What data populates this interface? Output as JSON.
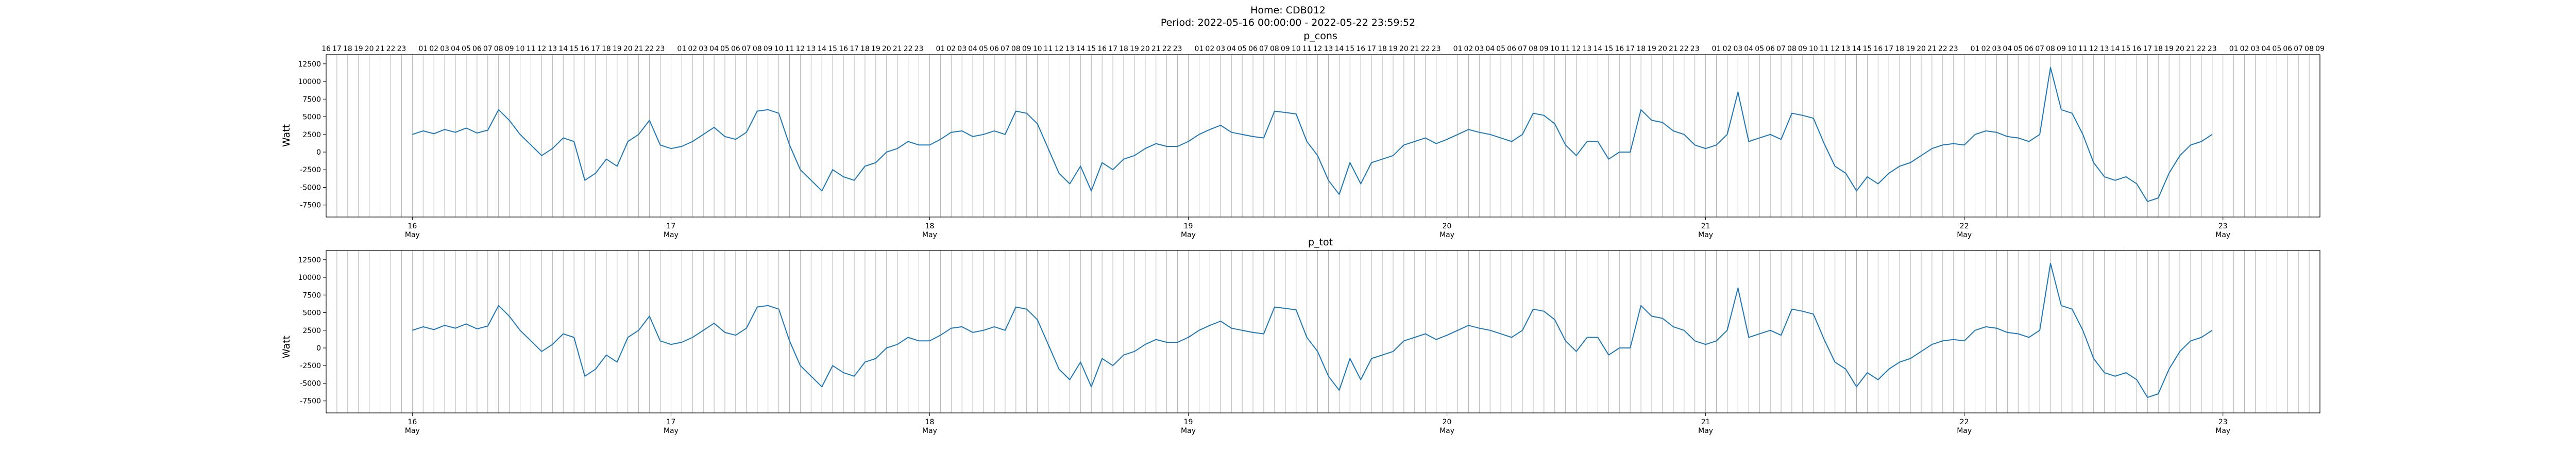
{
  "figure": {
    "title_line1": "Home: CDB012",
    "title_line2": "Period: 2022-05-16 00:00:00 - 2022-05-22 23:59:52"
  },
  "colors": {
    "series": "#1f77b4",
    "vgrid": "#b0b0b0",
    "axes": "#000000"
  },
  "chart_data": [
    {
      "type": "line",
      "title": "p_cons",
      "ylabel": "Watt",
      "xlim": [
        "2022-05-15 16:00",
        "2022-05-23 09:00"
      ],
      "ylim": [
        -9200,
        13800
      ],
      "yticks": [
        12500,
        10000,
        7500,
        5000,
        2500,
        0,
        -2500,
        -5000,
        -7500
      ],
      "xticks": [
        {
          "day": "16",
          "month": "May"
        },
        {
          "day": "17",
          "month": "May"
        },
        {
          "day": "18",
          "month": "May"
        },
        {
          "day": "19",
          "month": "May"
        },
        {
          "day": "20",
          "month": "May"
        },
        {
          "day": "21",
          "month": "May"
        },
        {
          "day": "22",
          "month": "May"
        },
        {
          "day": "23",
          "month": "May"
        }
      ],
      "top_hour_labels": true,
      "vertical_grid": "hourly",
      "series": [
        {
          "days": [
            "2022-05-16",
            "2022-05-17",
            "2022-05-18",
            "2022-05-19",
            "2022-05-20",
            "2022-05-21",
            "2022-05-22"
          ],
          "hours": [
            0,
            1,
            2,
            3,
            4,
            5,
            6,
            7,
            8,
            9,
            10,
            11,
            12,
            13,
            14,
            15,
            16,
            17,
            18,
            19,
            20,
            21,
            22,
            23
          ],
          "values": [
            [
              2500,
              3000,
              2600,
              3200,
              2800,
              3400,
              2700,
              3100,
              6000,
              4500,
              2500,
              1000,
              -500,
              500,
              2000,
              1500,
              -4000,
              -3000,
              -1000,
              -2000,
              1500,
              2500,
              4500,
              1000
            ],
            [
              500,
              800,
              1500,
              2500,
              3500,
              2200,
              1800,
              2800,
              5800,
              6000,
              5500,
              1000,
              -2500,
              -4000,
              -5500,
              -2500,
              -3500,
              -4000,
              -2000,
              -1500,
              0,
              500,
              1500,
              1000
            ],
            [
              1000,
              1800,
              2800,
              3000,
              2200,
              2500,
              3000,
              2500,
              5800,
              5500,
              4000,
              500,
              -3000,
              -4500,
              -2000,
              -5500,
              -1500,
              -2500,
              -1000,
              -500,
              500,
              1200,
              800,
              800
            ],
            [
              1500,
              2500,
              3200,
              3800,
              2800,
              2500,
              2200,
              2000,
              5800,
              5600,
              5400,
              1500,
              -500,
              -4000,
              -6000,
              -1500,
              -4500,
              -1500,
              -1000,
              -500,
              1000,
              1500,
              2000,
              1200
            ],
            [
              1800,
              2500,
              3200,
              2800,
              2500,
              2000,
              1500,
              2500,
              5500,
              5200,
              4000,
              1000,
              -500,
              1500,
              1500,
              -1000,
              0,
              0,
              6000,
              4500,
              4200,
              3000,
              2500,
              1000
            ],
            [
              500,
              1000,
              2500,
              8500,
              1500,
              2000,
              2500,
              1800,
              5500,
              5200,
              4800,
              1200,
              -2000,
              -3000,
              -5500,
              -3500,
              -4500,
              -3000,
              -2000,
              -1500,
              -500,
              500,
              1000,
              1200
            ],
            [
              1000,
              2500,
              3000,
              2800,
              2200,
              2000,
              1500,
              2500,
              12000,
              6000,
              5500,
              2500,
              -1500,
              -3500,
              -4000,
              -3500,
              -4500,
              -7000,
              -6500,
              -3000,
              -500,
              1000,
              1500,
              2500
            ]
          ]
        }
      ]
    },
    {
      "type": "line",
      "title": "p_tot",
      "ylabel": "Watt",
      "xlim": [
        "2022-05-15 16:00",
        "2022-05-23 09:00"
      ],
      "ylim": [
        -9200,
        13800
      ],
      "yticks": [
        12500,
        10000,
        7500,
        5000,
        2500,
        0,
        -2500,
        -5000,
        -7500
      ],
      "xticks": [
        {
          "day": "16",
          "month": "May"
        },
        {
          "day": "17",
          "month": "May"
        },
        {
          "day": "18",
          "month": "May"
        },
        {
          "day": "19",
          "month": "May"
        },
        {
          "day": "20",
          "month": "May"
        },
        {
          "day": "21",
          "month": "May"
        },
        {
          "day": "22",
          "month": "May"
        },
        {
          "day": "23",
          "month": "May"
        }
      ],
      "top_hour_labels": false,
      "vertical_grid": "hourly",
      "series": [
        {
          "days": [
            "2022-05-16",
            "2022-05-17",
            "2022-05-18",
            "2022-05-19",
            "2022-05-20",
            "2022-05-21",
            "2022-05-22"
          ],
          "hours": [
            0,
            1,
            2,
            3,
            4,
            5,
            6,
            7,
            8,
            9,
            10,
            11,
            12,
            13,
            14,
            15,
            16,
            17,
            18,
            19,
            20,
            21,
            22,
            23
          ],
          "values": [
            [
              2500,
              3000,
              2600,
              3200,
              2800,
              3400,
              2700,
              3100,
              6000,
              4500,
              2500,
              1000,
              -500,
              500,
              2000,
              1500,
              -4000,
              -3000,
              -1000,
              -2000,
              1500,
              2500,
              4500,
              1000
            ],
            [
              500,
              800,
              1500,
              2500,
              3500,
              2200,
              1800,
              2800,
              5800,
              6000,
              5500,
              1000,
              -2500,
              -4000,
              -5500,
              -2500,
              -3500,
              -4000,
              -2000,
              -1500,
              0,
              500,
              1500,
              1000
            ],
            [
              1000,
              1800,
              2800,
              3000,
              2200,
              2500,
              3000,
              2500,
              5800,
              5500,
              4000,
              500,
              -3000,
              -4500,
              -2000,
              -5500,
              -1500,
              -2500,
              -1000,
              -500,
              500,
              1200,
              800,
              800
            ],
            [
              1500,
              2500,
              3200,
              3800,
              2800,
              2500,
              2200,
              2000,
              5800,
              5600,
              5400,
              1500,
              -500,
              -4000,
              -6000,
              -1500,
              -4500,
              -1500,
              -1000,
              -500,
              1000,
              1500,
              2000,
              1200
            ],
            [
              1800,
              2500,
              3200,
              2800,
              2500,
              2000,
              1500,
              2500,
              5500,
              5200,
              4000,
              1000,
              -500,
              1500,
              1500,
              -1000,
              0,
              0,
              6000,
              4500,
              4200,
              3000,
              2500,
              1000
            ],
            [
              500,
              1000,
              2500,
              8500,
              1500,
              2000,
              2500,
              1800,
              5500,
              5200,
              4800,
              1200,
              -2000,
              -3000,
              -5500,
              -3500,
              -4500,
              -3000,
              -2000,
              -1500,
              -500,
              500,
              1000,
              1200
            ],
            [
              1000,
              2500,
              3000,
              2800,
              2200,
              2000,
              1500,
              2500,
              12000,
              6000,
              5500,
              2500,
              -1500,
              -3500,
              -4000,
              -3500,
              -4500,
              -7000,
              -6500,
              -3000,
              -500,
              1000,
              1500,
              2500
            ]
          ]
        }
      ]
    }
  ]
}
